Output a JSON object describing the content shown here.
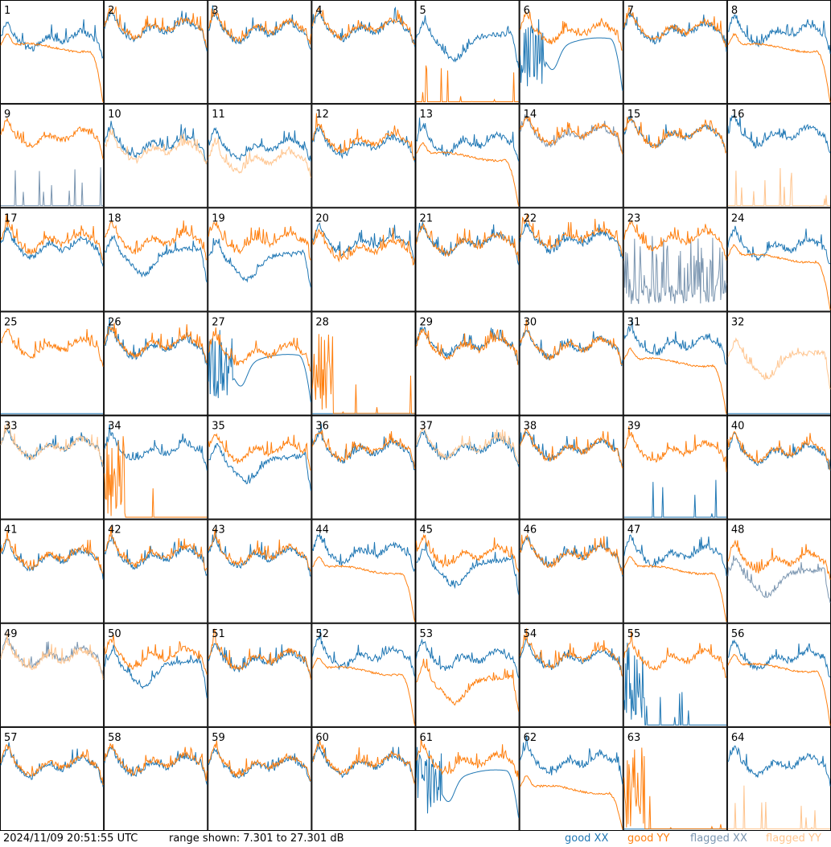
{
  "footer": {
    "timestamp": "2024/11/09 20:51:55 UTC",
    "range_text": "range shown: 7.301 to 27.301 dB",
    "legend": {
      "good_xx": "good XX",
      "good_yy": "good YY",
      "flagged_xx": "flagged XX",
      "flagged_yy": "flagged YY"
    }
  },
  "colors": {
    "good_xx": "#1f77b4",
    "good_yy": "#ff7f0e",
    "flagged_xx": "#7a95b0",
    "flagged_yy": "#ffc58f"
  },
  "chart_data": {
    "type": "line",
    "layout": "8x8 small multiples",
    "unit": "dB",
    "ylim": [
      7.301,
      27.301
    ],
    "series_names": [
      "good XX",
      "good YY",
      "flagged XX",
      "flagged YY"
    ],
    "panels": [
      {
        "id": "1",
        "xx": "good",
        "yy": "good",
        "xx_shape": "normal",
        "yy_shape": "droop",
        "xx_level": 0.62,
        "yy_level": 0.55
      },
      {
        "id": "2",
        "xx": "good",
        "yy": "good",
        "xx_shape": "normal",
        "yy_shape": "normal",
        "xx_level": 0.72,
        "yy_level": 0.74
      },
      {
        "id": "3",
        "xx": "good",
        "yy": "good",
        "xx_shape": "normal",
        "yy_shape": "normal",
        "xx_level": 0.7,
        "yy_level": 0.72
      },
      {
        "id": "4",
        "xx": "good",
        "yy": "good",
        "xx_shape": "normal",
        "yy_shape": "normal",
        "xx_level": 0.72,
        "yy_level": 0.74
      },
      {
        "id": "5",
        "xx": "good",
        "yy": "good",
        "xx_shape": "dip",
        "yy_shape": "spikes",
        "xx_level": 0.62,
        "yy_level": 0.0
      },
      {
        "id": "6",
        "xx": "good",
        "yy": "good",
        "xx_shape": "burst_dip",
        "yy_shape": "normal",
        "xx_level": 0.5,
        "yy_level": 0.7
      },
      {
        "id": "7",
        "xx": "good",
        "yy": "good",
        "xx_shape": "normal",
        "yy_shape": "normal",
        "xx_level": 0.7,
        "yy_level": 0.72
      },
      {
        "id": "8",
        "xx": "good",
        "yy": "good",
        "xx_shape": "normal",
        "yy_shape": "droop",
        "xx_level": 0.68,
        "yy_level": 0.55
      },
      {
        "id": "9",
        "xx": "flagged",
        "yy": "good",
        "xx_shape": "spikes",
        "yy_shape": "normal",
        "xx_level": 0.0,
        "yy_level": 0.68
      },
      {
        "id": "10",
        "xx": "good",
        "yy": "flagged",
        "xx_shape": "normal",
        "yy_shape": "normal",
        "xx_level": 0.6,
        "yy_level": 0.55
      },
      {
        "id": "11",
        "xx": "good",
        "yy": "flagged",
        "xx_shape": "normal",
        "yy_shape": "normal",
        "xx_level": 0.58,
        "yy_level": 0.45
      },
      {
        "id": "12",
        "xx": "good",
        "yy": "good",
        "xx_shape": "normal",
        "yy_shape": "normal",
        "xx_level": 0.6,
        "yy_level": 0.64
      },
      {
        "id": "13",
        "xx": "good",
        "yy": "good",
        "xx_shape": "normal",
        "yy_shape": "droop",
        "xx_level": 0.62,
        "yy_level": 0.5
      },
      {
        "id": "14",
        "xx": "flagged",
        "yy": "good",
        "xx_shape": "normal",
        "yy_shape": "normal",
        "xx_level": 0.7,
        "yy_level": 0.72
      },
      {
        "id": "15",
        "xx": "good",
        "yy": "good",
        "xx_shape": "normal",
        "yy_shape": "normal",
        "xx_level": 0.7,
        "yy_level": 0.7
      },
      {
        "id": "16",
        "xx": "good",
        "yy": "flagged",
        "xx_shape": "normal",
        "yy_shape": "spikes",
        "xx_level": 0.7,
        "yy_level": 0.0
      },
      {
        "id": "17",
        "xx": "good",
        "yy": "good",
        "xx_shape": "normal",
        "yy_shape": "normal",
        "xx_level": 0.62,
        "yy_level": 0.68
      },
      {
        "id": "18",
        "xx": "good",
        "yy": "good",
        "xx_shape": "dip",
        "yy_shape": "normal",
        "xx_level": 0.55,
        "yy_level": 0.68
      },
      {
        "id": "19",
        "xx": "good",
        "yy": "good",
        "xx_shape": "dip",
        "yy_shape": "normal",
        "xx_level": 0.5,
        "yy_level": 0.68
      },
      {
        "id": "20",
        "xx": "good",
        "yy": "good",
        "xx_shape": "normal",
        "yy_shape": "normal",
        "xx_level": 0.66,
        "yy_level": 0.6
      },
      {
        "id": "21",
        "xx": "good",
        "yy": "good",
        "xx_shape": "normal",
        "yy_shape": "normal",
        "xx_level": 0.66,
        "yy_level": 0.66
      },
      {
        "id": "22",
        "xx": "good",
        "yy": "good",
        "xx_shape": "normal",
        "yy_shape": "normal",
        "xx_level": 0.68,
        "yy_level": 0.72
      },
      {
        "id": "23",
        "xx": "flagged",
        "yy": "good",
        "xx_shape": "noise",
        "yy_shape": "normal",
        "xx_level": 0.3,
        "yy_level": 0.7
      },
      {
        "id": "24",
        "xx": "good",
        "yy": "good",
        "xx_shape": "normal",
        "yy_shape": "droop",
        "xx_level": 0.62,
        "yy_level": 0.52
      },
      {
        "id": "25",
        "xx": "good",
        "yy": "good",
        "xx_shape": "flat",
        "yy_shape": "normal",
        "xx_level": 0.0,
        "yy_level": 0.66
      },
      {
        "id": "26",
        "xx": "good",
        "yy": "good",
        "xx_shape": "normal",
        "yy_shape": "normal",
        "xx_level": 0.66,
        "yy_level": 0.68
      },
      {
        "id": "27",
        "xx": "good",
        "yy": "good",
        "xx_shape": "burst_dip",
        "yy_shape": "normal",
        "xx_level": 0.45,
        "yy_level": 0.6
      },
      {
        "id": "28",
        "xx": "good",
        "yy": "good",
        "xx_shape": "flat",
        "yy_shape": "burst",
        "xx_level": 0.0,
        "yy_level": 0.0
      },
      {
        "id": "29",
        "xx": "good",
        "yy": "good",
        "xx_shape": "normal",
        "yy_shape": "normal",
        "xx_level": 0.68,
        "yy_level": 0.66
      },
      {
        "id": "30",
        "xx": "good",
        "yy": "good",
        "xx_shape": "normal",
        "yy_shape": "normal",
        "xx_level": 0.66,
        "yy_level": 0.66
      },
      {
        "id": "31",
        "xx": "good",
        "yy": "good",
        "xx_shape": "normal",
        "yy_shape": "droop",
        "xx_level": 0.68,
        "yy_level": 0.52
      },
      {
        "id": "32",
        "xx": "good",
        "yy": "flagged",
        "xx_shape": "flat",
        "yy_shape": "dip",
        "xx_level": 0.0,
        "yy_level": 0.55
      },
      {
        "id": "33",
        "xx": "good",
        "yy": "flagged",
        "xx_shape": "normal",
        "yy_shape": "normal",
        "xx_level": 0.7,
        "yy_level": 0.7
      },
      {
        "id": "34",
        "xx": "good",
        "yy": "good",
        "xx_shape": "normal",
        "yy_shape": "burst",
        "xx_level": 0.66,
        "yy_level": 0.0
      },
      {
        "id": "35",
        "xx": "good",
        "yy": "good",
        "xx_shape": "dip",
        "yy_shape": "normal",
        "xx_level": 0.55,
        "yy_level": 0.66
      },
      {
        "id": "36",
        "xx": "good",
        "yy": "good",
        "xx_shape": "normal",
        "yy_shape": "normal",
        "xx_level": 0.66,
        "yy_level": 0.68
      },
      {
        "id": "37",
        "xx": "good",
        "yy": "flagged",
        "xx_shape": "normal",
        "yy_shape": "normal",
        "xx_level": 0.68,
        "yy_level": 0.7
      },
      {
        "id": "38",
        "xx": "good",
        "yy": "good",
        "xx_shape": "normal",
        "yy_shape": "normal",
        "xx_level": 0.68,
        "yy_level": 0.68
      },
      {
        "id": "39",
        "xx": "good",
        "yy": "good",
        "xx_shape": "spikes",
        "yy_shape": "normal",
        "xx_level": 0.0,
        "yy_level": 0.66
      },
      {
        "id": "40",
        "xx": "good",
        "yy": "good",
        "xx_shape": "normal",
        "yy_shape": "normal",
        "xx_level": 0.64,
        "yy_level": 0.66
      },
      {
        "id": "41",
        "xx": "good",
        "yy": "good",
        "xx_shape": "normal",
        "yy_shape": "normal",
        "xx_level": 0.62,
        "yy_level": 0.64
      },
      {
        "id": "42",
        "xx": "good",
        "yy": "good",
        "xx_shape": "normal",
        "yy_shape": "normal",
        "xx_level": 0.64,
        "yy_level": 0.66
      },
      {
        "id": "43",
        "xx": "good",
        "yy": "good",
        "xx_shape": "normal",
        "yy_shape": "normal",
        "xx_level": 0.64,
        "yy_level": 0.66
      },
      {
        "id": "44",
        "xx": "good",
        "yy": "good",
        "xx_shape": "normal",
        "yy_shape": "droop",
        "xx_level": 0.68,
        "yy_level": 0.52
      },
      {
        "id": "45",
        "xx": "good",
        "yy": "good",
        "xx_shape": "dip",
        "yy_shape": "normal",
        "xx_level": 0.55,
        "yy_level": 0.66
      },
      {
        "id": "46",
        "xx": "good",
        "yy": "good",
        "xx_shape": "normal",
        "yy_shape": "normal",
        "xx_level": 0.66,
        "yy_level": 0.66
      },
      {
        "id": "47",
        "xx": "good",
        "yy": "good",
        "xx_shape": "normal",
        "yy_shape": "droop",
        "xx_level": 0.66,
        "yy_level": 0.52
      },
      {
        "id": "48",
        "xx": "flagged",
        "yy": "good",
        "xx_shape": "dip",
        "yy_shape": "normal",
        "xx_level": 0.45,
        "yy_level": 0.6
      },
      {
        "id": "49",
        "xx": "flagged",
        "yy": "flagged",
        "xx_shape": "normal",
        "yy_shape": "normal",
        "xx_level": 0.68,
        "yy_level": 0.66
      },
      {
        "id": "50",
        "xx": "good",
        "yy": "good",
        "xx_shape": "dip",
        "yy_shape": "normal",
        "xx_level": 0.58,
        "yy_level": 0.68
      },
      {
        "id": "51",
        "xx": "good",
        "yy": "good",
        "xx_shape": "normal",
        "yy_shape": "normal",
        "xx_level": 0.64,
        "yy_level": 0.66
      },
      {
        "id": "52",
        "xx": "good",
        "yy": "good",
        "xx_shape": "normal",
        "yy_shape": "droop",
        "xx_level": 0.68,
        "yy_level": 0.55
      },
      {
        "id": "53",
        "xx": "good",
        "yy": "good",
        "xx_shape": "normal",
        "yy_shape": "dip",
        "xx_level": 0.66,
        "yy_level": 0.42
      },
      {
        "id": "54",
        "xx": "good",
        "yy": "good",
        "xx_shape": "normal",
        "yy_shape": "normal",
        "xx_level": 0.66,
        "yy_level": 0.68
      },
      {
        "id": "55",
        "xx": "good",
        "yy": "good",
        "xx_shape": "burst",
        "yy_shape": "normal",
        "xx_level": 0.0,
        "yy_level": 0.66
      },
      {
        "id": "56",
        "xx": "good",
        "yy": "good",
        "xx_shape": "normal",
        "yy_shape": "droop",
        "xx_level": 0.66,
        "yy_level": 0.58
      },
      {
        "id": "57",
        "xx": "good",
        "yy": "good",
        "xx_shape": "normal",
        "yy_shape": "normal",
        "xx_level": 0.62,
        "yy_level": 0.64
      },
      {
        "id": "58",
        "xx": "good",
        "yy": "good",
        "xx_shape": "normal",
        "yy_shape": "normal",
        "xx_level": 0.64,
        "yy_level": 0.66
      },
      {
        "id": "59",
        "xx": "good",
        "yy": "good",
        "xx_shape": "normal",
        "yy_shape": "normal",
        "xx_level": 0.62,
        "yy_level": 0.64
      },
      {
        "id": "60",
        "xx": "good",
        "yy": "good",
        "xx_shape": "normal",
        "yy_shape": "normal",
        "xx_level": 0.64,
        "yy_level": 0.66
      },
      {
        "id": "61",
        "xx": "good",
        "yy": "good",
        "xx_shape": "burst_dip",
        "yy_shape": "normal",
        "xx_level": 0.45,
        "yy_level": 0.66
      },
      {
        "id": "62",
        "xx": "good",
        "yy": "good",
        "xx_shape": "normal",
        "yy_shape": "droop",
        "xx_level": 0.66,
        "yy_level": 0.4
      },
      {
        "id": "63",
        "xx": "good",
        "yy": "good",
        "xx_shape": "flat",
        "yy_shape": "burst",
        "xx_level": 0.0,
        "yy_level": 0.0
      },
      {
        "id": "64",
        "xx": "good",
        "yy": "flagged",
        "xx_shape": "normal",
        "yy_shape": "spikes",
        "xx_level": 0.64,
        "yy_level": 0.0
      }
    ]
  }
}
